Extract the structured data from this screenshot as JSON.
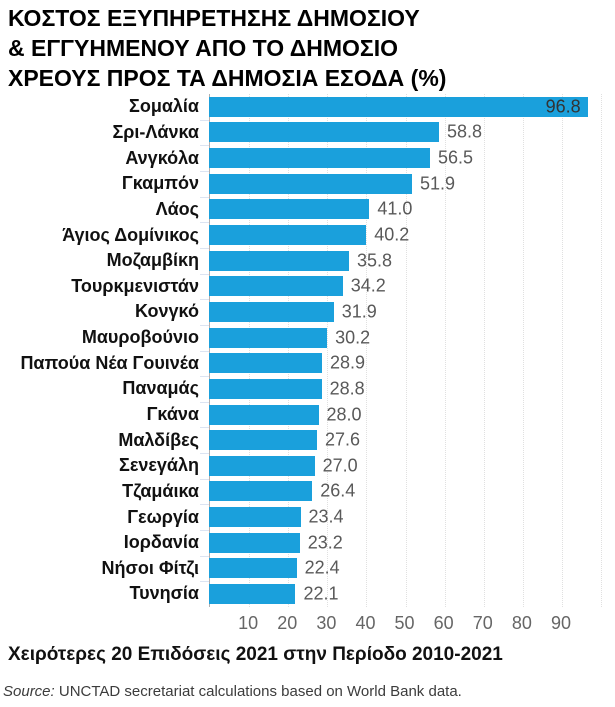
{
  "title": {
    "lines": [
      "ΚΟΣΤΟΣ ΕΞΥΠΗΡΕΤΗΣΗΣ ΔΗΜΟΣΙΟΥ",
      "& ΕΓΓΥΗΜΕΝΟΥ ΑΠΟ ΤΟ ΔΗΜΟΣΙΟ",
      "ΧΡΕΟΥΣ ΠΡΟΣ ΤΑ ΔΗΜΟΣΙΑ ΕΣΟΔΑ (%)"
    ]
  },
  "chart_data": {
    "type": "bar",
    "orientation": "horizontal",
    "title": "ΚΟΣΤΟΣ ΕΞΥΠΗΡΕΤΗΣΗΣ ΔΗΜΟΣΙΟΥ & ΕΓΓΥΗΜΕΝΟΥ ΑΠΟ ΤΟ ΔΗΜΟΣΙΟ ΧΡΕΟΥΣ ΠΡΟΣ ΤΑ ΔΗΜΟΣΙΑ ΕΣΟΔΑ (%)",
    "subtitle": "Χειρότερες 20 Επιδόσεις 2021 στην Περίοδο 2010-2021",
    "categories": [
      "Σομαλία",
      "Σρι-Λάνκα",
      "Ανγκόλα",
      "Γκαμπόν",
      "Λάος",
      "Άγιος Δομίνικος",
      "Μοζαμβίκη",
      "Τουρκμενιστάν",
      "Κονγκό",
      "Μαυροβούνιο",
      "Παπούα Νέα Γουινέα",
      "Παναμάς",
      "Γκάνα",
      "Μαλδίβες",
      "Σενεγάλη",
      "Τζαμάικα",
      "Γεωργία",
      "Ιορδανία",
      "Νήσοι Φίτζι",
      "Τυνησία"
    ],
    "values": [
      96.8,
      58.8,
      56.5,
      51.9,
      41.0,
      40.2,
      35.8,
      34.2,
      31.9,
      30.2,
      28.9,
      28.8,
      28.0,
      27.6,
      27.0,
      26.4,
      23.4,
      23.2,
      22.4,
      22.1
    ],
    "value_labels": [
      "96.8",
      "58.8",
      "56.5",
      "51.9",
      "41.0",
      "40.2",
      "35.8",
      "34.2",
      "31.9",
      "30.2",
      "28.9",
      "28.8",
      "28.0",
      "27.6",
      "27.0",
      "26.4",
      "23.4",
      "23.2",
      "22.4",
      "22.1"
    ],
    "xlim": [
      0,
      103.8
    ],
    "x_ticks": [
      10,
      20,
      30,
      40,
      50,
      60,
      70,
      80,
      90
    ],
    "gridline_values": [
      10,
      20,
      30,
      40,
      50,
      60,
      70,
      80,
      90,
      100
    ],
    "grid": "vertical-dotted",
    "legend": "none",
    "bar_color": "#1aa0dc"
  },
  "footer": {
    "subtitle": "Χειρότερες 20 Επιδόσεις 2021 στην Περίοδο 2010-2021",
    "source_prefix": "Source:",
    "source_text": " UNCTAD secretariat calculations based on World Bank data."
  }
}
